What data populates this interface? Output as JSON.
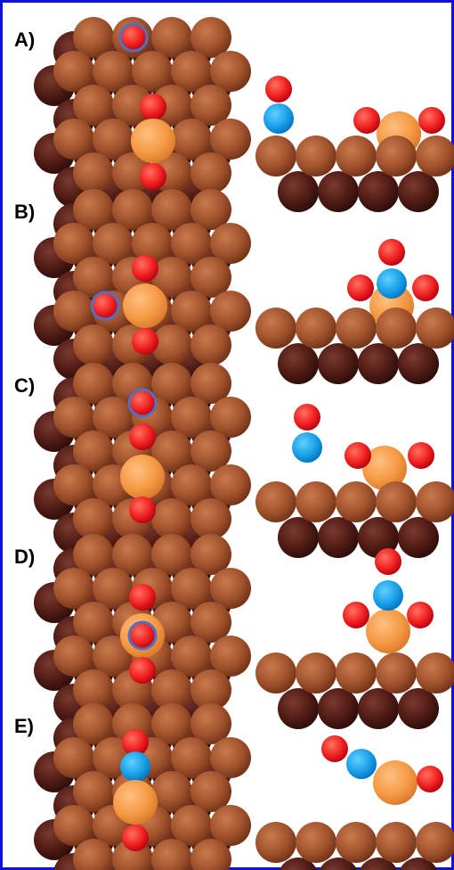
{
  "panels": [
    {
      "label": "A)"
    },
    {
      "label": "B)"
    },
    {
      "label": "C)"
    },
    {
      "label": "D)"
    },
    {
      "label": "E)"
    }
  ]
}
